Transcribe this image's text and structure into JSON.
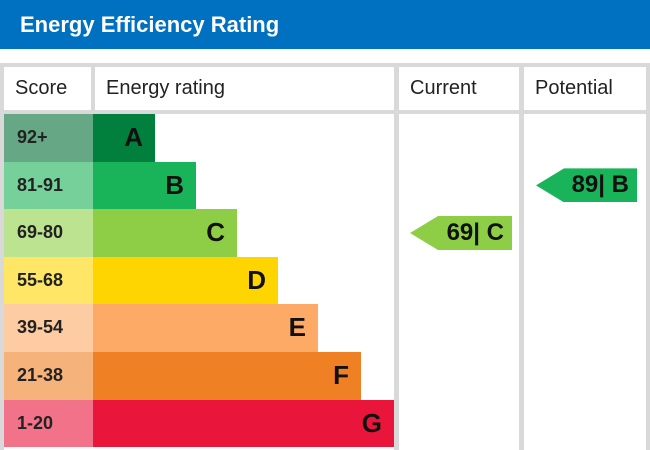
{
  "header": {
    "title": "Energy Efficiency Rating",
    "color": "#0070c0"
  },
  "columns": [
    "Score",
    "Energy rating",
    "Current",
    "Potential"
  ],
  "chart_data": {
    "type": "bar",
    "bands": [
      {
        "score": "92+",
        "letter": "A",
        "color": "#007f3d",
        "tint": "#66a785"
      },
      {
        "score": "81-91",
        "letter": "B",
        "color": "#19b459",
        "tint": "#75d09a"
      },
      {
        "score": "69-80",
        "letter": "C",
        "color": "#8dce46",
        "tint": "#bbe390"
      },
      {
        "score": "55-68",
        "letter": "D",
        "color": "#ffd500",
        "tint": "#ffe666"
      },
      {
        "score": "39-54",
        "letter": "E",
        "color": "#fcaa65",
        "tint": "#fdcca3"
      },
      {
        "score": "21-38",
        "letter": "F",
        "color": "#ef8023",
        "tint": "#f5b37b"
      },
      {
        "score": "1-20",
        "letter": "G",
        "color": "#e9153b",
        "tint": "#f27389"
      }
    ],
    "current": {
      "value": 69,
      "letter": "C",
      "label": "69| C"
    },
    "potential": {
      "value": 89,
      "letter": "B",
      "label": "89| B"
    }
  }
}
